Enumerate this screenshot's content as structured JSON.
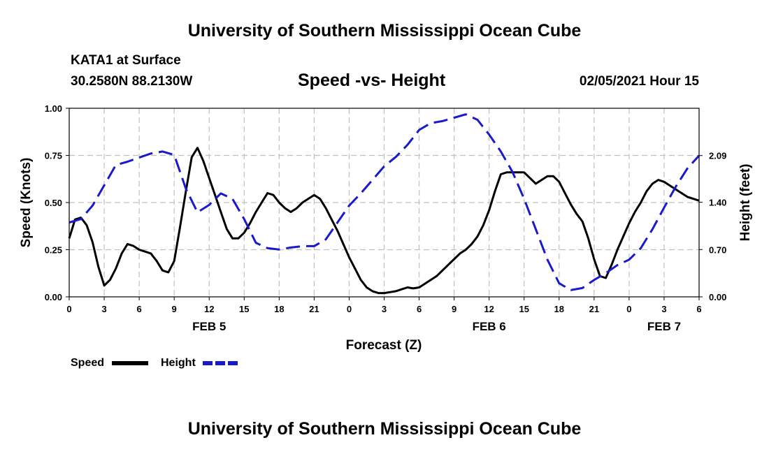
{
  "header": {
    "title": "University of Southern Mississippi Ocean Cube",
    "station": "KATA1 at Surface",
    "coords": "30.2580N 88.2130W",
    "chart_title": "Speed -vs- Height",
    "datetime": "02/05/2021 Hour 15"
  },
  "footer": {
    "title": "University of Southern Mississippi Ocean Cube"
  },
  "colors": {
    "speed": "#000000",
    "height": "#1a1acc",
    "grid": "#c0c0c0"
  },
  "chart_data": {
    "type": "line",
    "title": "Speed -vs- Height",
    "xlabel": "Forecast (Z)",
    "ylabel_left": "Speed (Knots)",
    "ylabel_right": "Height (feet)",
    "xlim": [
      0,
      54
    ],
    "ylim_left": [
      0,
      1
    ],
    "ylim_right": [
      0,
      2.79
    ],
    "x_ticks": [
      0,
      3,
      6,
      9,
      12,
      15,
      18,
      21,
      24,
      27,
      30,
      33,
      36,
      39,
      42,
      45,
      48,
      51,
      54
    ],
    "x_tick_labels": [
      "0",
      "3",
      "6",
      "9",
      "12",
      "15",
      "18",
      "21",
      "0",
      "3",
      "6",
      "9",
      "12",
      "15",
      "18",
      "21",
      "0",
      "3",
      "6"
    ],
    "day_labels": [
      {
        "label": "FEB 5",
        "x": 12
      },
      {
        "label": "FEB 6",
        "x": 36
      },
      {
        "label": "FEB 7",
        "x": 51
      }
    ],
    "y_left_ticks": [
      0,
      0.25,
      0.5,
      0.75,
      1.0
    ],
    "y_left_tick_labels": [
      "0.00",
      "0.25",
      "0.50",
      "0.75",
      "1.00"
    ],
    "y_right_ticks": [
      0,
      0.7,
      1.4,
      2.09
    ],
    "y_right_tick_labels": [
      "0.00",
      "0.70",
      "1.40",
      "2.09"
    ],
    "grid": true,
    "legend": [
      {
        "name": "Speed",
        "style": "solid"
      },
      {
        "name": "Height",
        "style": "dashed"
      }
    ],
    "series": [
      {
        "name": "Speed",
        "axis": "left",
        "x": [
          0,
          0.5,
          1,
          1.5,
          2,
          2.5,
          3,
          3.5,
          4,
          4.5,
          5,
          5.5,
          6,
          6.5,
          7,
          7.5,
          8,
          8.5,
          9,
          9.5,
          10,
          10.5,
          11,
          11.5,
          12,
          12.5,
          13,
          13.5,
          14,
          14.5,
          15,
          15.5,
          16,
          16.5,
          17,
          17.5,
          18,
          18.5,
          19,
          19.5,
          20,
          20.5,
          21,
          21.5,
          22,
          22.5,
          23,
          23.5,
          24,
          24.5,
          25,
          25.5,
          26,
          26.5,
          27,
          27.5,
          28,
          28.5,
          29,
          29.5,
          30,
          30.5,
          31,
          31.5,
          32,
          32.5,
          33,
          33.5,
          34,
          34.5,
          35,
          35.5,
          36,
          36.5,
          37,
          37.5,
          38,
          38.5,
          39,
          39.5,
          40,
          40.5,
          41,
          41.5,
          42,
          42.5,
          43,
          43.5,
          44,
          44.5,
          45,
          45.5,
          46,
          46.5,
          47,
          47.5,
          48,
          48.5,
          49,
          49.5,
          50,
          50.5,
          51,
          51.5,
          52,
          52.5,
          53,
          53.5,
          54
        ],
        "values": [
          0.31,
          0.41,
          0.42,
          0.38,
          0.29,
          0.16,
          0.06,
          0.09,
          0.15,
          0.23,
          0.28,
          0.27,
          0.25,
          0.24,
          0.23,
          0.19,
          0.14,
          0.13,
          0.19,
          0.37,
          0.56,
          0.74,
          0.79,
          0.72,
          0.63,
          0.54,
          0.45,
          0.36,
          0.31,
          0.31,
          0.34,
          0.39,
          0.45,
          0.5,
          0.55,
          0.54,
          0.5,
          0.47,
          0.45,
          0.47,
          0.5,
          0.52,
          0.54,
          0.52,
          0.47,
          0.41,
          0.35,
          0.28,
          0.21,
          0.15,
          0.09,
          0.05,
          0.03,
          0.02,
          0.02,
          0.025,
          0.03,
          0.04,
          0.05,
          0.045,
          0.05,
          0.07,
          0.09,
          0.11,
          0.14,
          0.17,
          0.2,
          0.23,
          0.25,
          0.28,
          0.32,
          0.38,
          0.46,
          0.56,
          0.65,
          0.66,
          0.66,
          0.66,
          0.66,
          0.63,
          0.6,
          0.62,
          0.64,
          0.64,
          0.61,
          0.55,
          0.49,
          0.44,
          0.4,
          0.31,
          0.2,
          0.11,
          0.1,
          0.17,
          0.25,
          0.32,
          0.39,
          0.45,
          0.5,
          0.56,
          0.6,
          0.62,
          0.61,
          0.59,
          0.57,
          0.55,
          0.53,
          0.52,
          0.51
        ]
      },
      {
        "name": "Height",
        "axis": "right",
        "x": [
          0,
          1,
          2,
          3,
          4,
          5,
          6,
          7,
          8,
          9,
          10,
          11,
          12,
          13,
          14,
          15,
          16,
          17,
          18,
          19,
          20,
          21,
          22,
          23,
          24,
          25,
          26,
          27,
          28,
          29,
          30,
          31,
          32,
          33,
          34,
          35,
          36,
          37,
          38,
          39,
          40,
          41,
          42,
          43,
          44,
          45,
          46,
          47,
          48,
          49,
          50,
          51,
          52,
          53,
          54
        ],
        "values": [
          1.1,
          1.15,
          1.35,
          1.65,
          1.95,
          2.0,
          2.06,
          2.12,
          2.15,
          2.1,
          1.6,
          1.25,
          1.36,
          1.53,
          1.45,
          1.15,
          0.8,
          0.72,
          0.7,
          0.73,
          0.75,
          0.75,
          0.85,
          1.1,
          1.35,
          1.53,
          1.73,
          1.93,
          2.07,
          2.25,
          2.47,
          2.57,
          2.6,
          2.65,
          2.7,
          2.62,
          2.4,
          2.15,
          1.85,
          1.45,
          1.0,
          0.55,
          0.2,
          0.1,
          0.13,
          0.25,
          0.35,
          0.47,
          0.55,
          0.72,
          1.0,
          1.32,
          1.63,
          1.9,
          2.09
        ]
      }
    ]
  }
}
